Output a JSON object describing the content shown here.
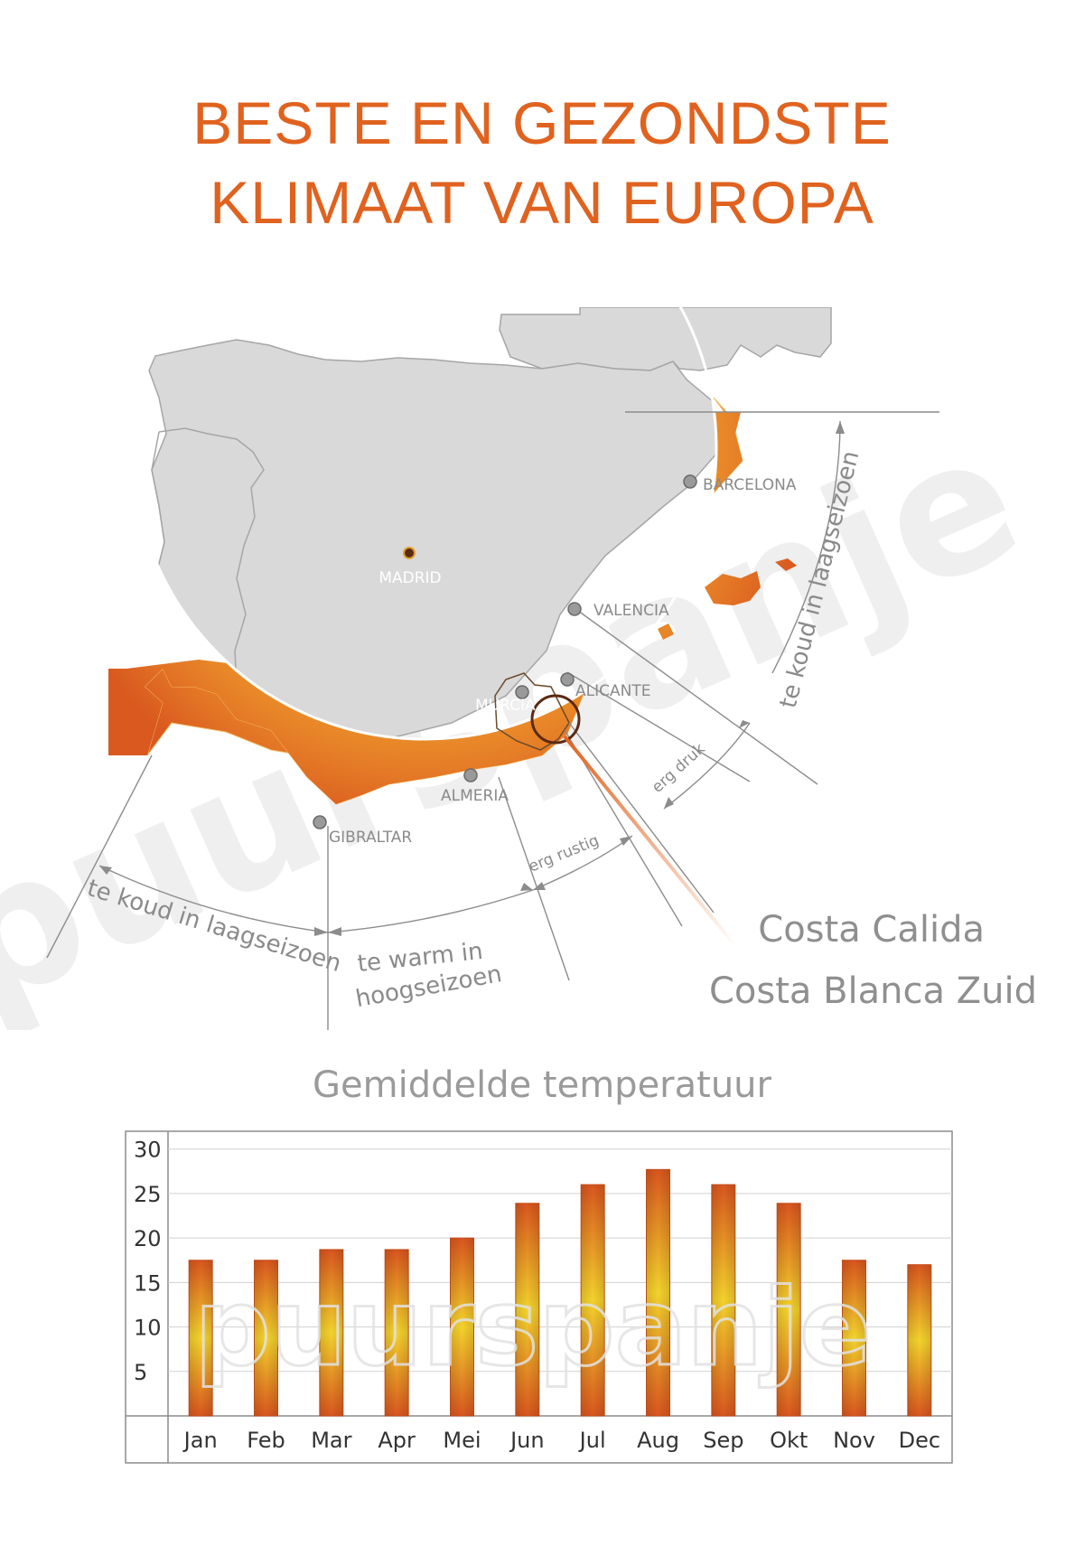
{
  "title": {
    "line1": "BESTE EN GEZONDSTE",
    "line2": "KLIMAAT VAN EUROPA"
  },
  "colors": {
    "accent": "#e0621f",
    "land_gray": "#d9d9d9",
    "coast_orange": "#e07020",
    "coast_yellow": "#f2c22a",
    "line_gray": "#8c8c8c",
    "text_gray": "#8a8a8a",
    "watermark": "#e8e8e8"
  },
  "map": {
    "cities": {
      "madrid": "MADRID",
      "barcelona": "BARCELONA",
      "valencia": "VALENCIA",
      "alicante": "ALICANTE",
      "murcia": "MURCIA",
      "almeria": "ALMERIA",
      "gibraltar": "GIBRALTAR"
    },
    "arc_labels": {
      "koud_west": "te koud in laagseizoen",
      "warm_line1": "te warm in",
      "warm_line2": "hoogseizoen",
      "rustig": "erg rustig",
      "druk": "erg druk",
      "koud_north": "te koud in laagseizoen"
    },
    "costa_calida": "Costa Calida",
    "costa_blanca": "Costa Blanca Zuid",
    "watermark": "puurspanje"
  },
  "chart_data": {
    "type": "bar",
    "title": "Gemiddelde temperatuur",
    "categories": [
      "Jan",
      "Feb",
      "Mar",
      "Apr",
      "Mei",
      "Jun",
      "Jul",
      "Aug",
      "Sep",
      "Okt",
      "Nov",
      "Dec"
    ],
    "values": [
      17.5,
      17.5,
      18.7,
      18.7,
      20,
      23.9,
      26,
      27.7,
      26,
      23.9,
      17.5,
      17
    ],
    "yticks": [
      5,
      10,
      15,
      20,
      25,
      30
    ],
    "ylim": [
      0,
      32
    ],
    "grid": true,
    "watermark": "puurspanje"
  }
}
